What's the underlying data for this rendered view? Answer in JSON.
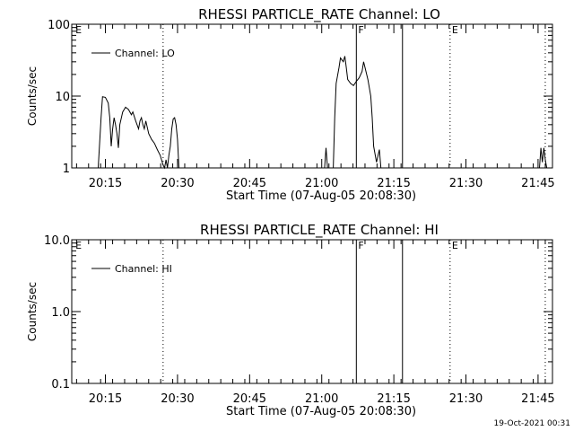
{
  "colors": {
    "background": "#ffffff",
    "foreground": "#000000"
  },
  "footer_timestamp": "19-Oct-2021 00:31",
  "chart_data": [
    {
      "type": "line",
      "title": "RHESSI PARTICLE_RATE Channel: LO",
      "xlabel": "Start Time (07-Aug-05 20:08:30)",
      "ylabel": "Counts/sec",
      "yscale": "log",
      "ylim": [
        1,
        100
      ],
      "y_ticks": [
        1,
        10,
        100
      ],
      "y_tick_labels": [
        "1",
        "10",
        "100"
      ],
      "xlim_minutes": [
        20.1333,
        21.8
      ],
      "x_ticks_minutes": [
        20.25,
        20.5,
        20.75,
        21.0,
        21.25,
        21.5,
        21.75
      ],
      "x_tick_labels": [
        "20:15",
        "20:30",
        "20:45",
        "21:00",
        "21:15",
        "21:30",
        "21:45"
      ],
      "legend": {
        "position": "top-left",
        "entries": [
          "Channel: LO"
        ]
      },
      "markers": [
        {
          "label": "E",
          "x": 20.14,
          "style": "none"
        },
        {
          "label": "",
          "x": 20.45,
          "style": "dotted"
        },
        {
          "label": "F",
          "x": 21.12,
          "style": "solid"
        },
        {
          "label": "",
          "x": 21.28,
          "style": "solid"
        },
        {
          "label": "E",
          "x": 21.445,
          "style": "dotted"
        },
        {
          "label": "",
          "x": 21.775,
          "style": "dotted"
        }
      ],
      "series": [
        {
          "name": "Channel: LO",
          "segments": [
            [
              [
                20.225,
                1
              ],
              [
                20.235,
                5
              ],
              [
                20.24,
                9.8
              ],
              [
                20.25,
                9.6
              ],
              [
                20.26,
                8
              ],
              [
                20.265,
                5
              ],
              [
                20.27,
                2
              ],
              [
                20.275,
                3.5
              ],
              [
                20.28,
                5
              ],
              [
                20.285,
                4
              ],
              [
                20.29,
                3
              ],
              [
                20.295,
                1.9
              ],
              [
                20.3,
                4
              ],
              [
                20.31,
                6
              ],
              [
                20.32,
                7
              ],
              [
                20.33,
                6.5
              ],
              [
                20.34,
                5.5
              ],
              [
                20.345,
                6
              ],
              [
                20.355,
                4.5
              ],
              [
                20.365,
                3.5
              ],
              [
                20.37,
                4.5
              ],
              [
                20.375,
                5
              ],
              [
                20.38,
                4
              ],
              [
                20.385,
                3.5
              ],
              [
                20.39,
                4.5
              ],
              [
                20.4,
                3
              ],
              [
                20.41,
                2.5
              ],
              [
                20.42,
                2.2
              ],
              [
                20.43,
                1.8
              ],
              [
                20.44,
                1.5
              ],
              [
                20.45,
                1.1
              ],
              [
                20.455,
                1
              ],
              [
                20.46,
                1.3
              ],
              [
                20.465,
                1
              ],
              [
                20.47,
                1.5
              ],
              [
                20.475,
                2
              ],
              [
                20.48,
                3.5
              ],
              [
                20.485,
                4.8
              ],
              [
                20.49,
                5
              ],
              [
                20.495,
                4
              ],
              [
                20.5,
                2.5
              ],
              [
                20.505,
                1
              ]
            ],
            [
              [
                21.01,
                1
              ],
              [
                21.015,
                1.9
              ],
              [
                21.02,
                1
              ]
            ],
            [
              [
                21.04,
                1
              ],
              [
                21.045,
                5
              ],
              [
                21.05,
                15
              ],
              [
                21.06,
                25
              ],
              [
                21.065,
                34
              ],
              [
                21.075,
                30
              ],
              [
                21.08,
                36
              ],
              [
                21.085,
                25
              ],
              [
                21.09,
                17
              ],
              [
                21.1,
                15
              ],
              [
                21.11,
                14
              ],
              [
                21.12,
                16
              ],
              [
                21.13,
                18
              ],
              [
                21.14,
                22
              ],
              [
                21.145,
                30
              ],
              [
                21.15,
                25
              ],
              [
                21.16,
                17
              ],
              [
                21.17,
                10
              ],
              [
                21.175,
                5
              ],
              [
                21.18,
                2
              ],
              [
                21.19,
                1.2
              ],
              [
                21.2,
                1.8
              ],
              [
                21.205,
                1
              ]
            ],
            [
              [
                21.755,
                1
              ],
              [
                21.76,
                1.9
              ],
              [
                21.765,
                1.2
              ],
              [
                21.77,
                1.9
              ],
              [
                21.775,
                1.3
              ],
              [
                21.78,
                1
              ]
            ]
          ]
        }
      ]
    },
    {
      "type": "line",
      "title": "RHESSI PARTICLE_RATE Channel: HI",
      "xlabel": "Start Time (07-Aug-05 20:08:30)",
      "ylabel": "Counts/sec",
      "yscale": "log",
      "ylim": [
        0.1,
        10
      ],
      "y_ticks": [
        0.1,
        1,
        10
      ],
      "y_tick_labels": [
        "0.1",
        "1.0",
        "10.0"
      ],
      "xlim_minutes": [
        20.1333,
        21.8
      ],
      "x_ticks_minutes": [
        20.25,
        20.5,
        20.75,
        21.0,
        21.25,
        21.5,
        21.75
      ],
      "x_tick_labels": [
        "20:15",
        "20:30",
        "20:45",
        "21:00",
        "21:15",
        "21:30",
        "21:45"
      ],
      "legend": {
        "position": "top-left",
        "entries": [
          "Channel: HI"
        ]
      },
      "markers": [
        {
          "label": "E",
          "x": 20.14,
          "style": "none"
        },
        {
          "label": "",
          "x": 20.45,
          "style": "dotted"
        },
        {
          "label": "F",
          "x": 21.12,
          "style": "solid"
        },
        {
          "label": "",
          "x": 21.28,
          "style": "solid"
        },
        {
          "label": "E",
          "x": 21.445,
          "style": "dotted"
        },
        {
          "label": "",
          "x": 21.775,
          "style": "dotted"
        }
      ],
      "series": [
        {
          "name": "Channel: HI",
          "segments": []
        }
      ]
    }
  ]
}
